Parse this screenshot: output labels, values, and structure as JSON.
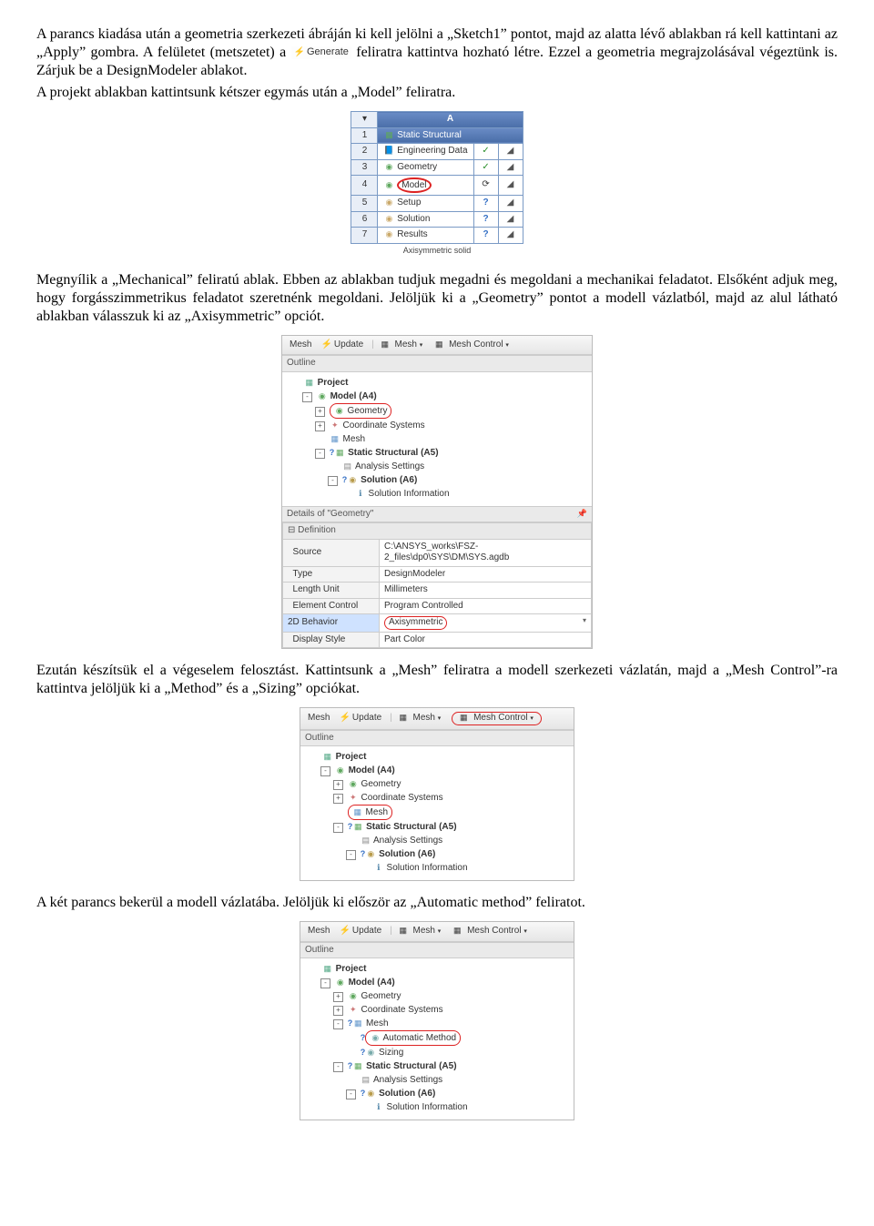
{
  "para1": "A parancs kiadása után a geometria szerkezeti ábráján ki kell jelölni a „Sketch1” pontot, majd az alatta lévő ablakban rá kell kattintani az „Apply” gombra. A felületet (metszetet) a ",
  "generate_label": "Generate",
  "para1b": " feliratra kattintva hozható létre. Ezzel a geometria megrajzolásával végeztünk is. Zárjuk be a DesignModeler ablakot.",
  "para1c": "A projekt ablakban kattintsunk kétszer egymás után a „Model” feliratra.",
  "schematic": {
    "col": "A",
    "rows": [
      {
        "n": "1",
        "icon": "cube",
        "label": "Static Structural",
        "st1": "",
        "st2": ""
      },
      {
        "n": "2",
        "icon": "book",
        "label": "Engineering Data",
        "st1": "✓",
        "st2": "◢"
      },
      {
        "n": "3",
        "icon": "geom",
        "label": "Geometry",
        "st1": "✓",
        "st2": "◢"
      },
      {
        "n": "4",
        "icon": "model",
        "label": "Model",
        "st1": "⟳",
        "st2": "◢",
        "ring": true
      },
      {
        "n": "5",
        "icon": "setup",
        "label": "Setup",
        "st1": "?",
        "st2": "◢"
      },
      {
        "n": "6",
        "icon": "sol",
        "label": "Solution",
        "st1": "?",
        "st2": "◢"
      },
      {
        "n": "7",
        "icon": "res",
        "label": "Results",
        "st1": "?",
        "st2": "◢"
      }
    ],
    "caption": "Axisymmetric solid"
  },
  "para2a": "Megnyílik a „Mechanical” feliratú ablak. Ebben az ablakban tudjuk megadni és megoldani a mechanikai feladatot. Elsőként adjuk meg, hogy forgásszimmetrikus feladatot szeretnénk megoldani. Jelöljük ki a „Geometry” pontot a modell vázlatból, majd az alul látható ablakban válasszuk ki az „Axisymmetric” opciót.",
  "mech1": {
    "toolbar": {
      "mesh": "Mesh",
      "update": "Update",
      "meshm": "Mesh",
      "meshc": "Mesh Control"
    },
    "outline_hdr": "Outline",
    "tree": [
      {
        "d": 0,
        "box": "",
        "ico": "proj",
        "txt": "Project",
        "b": true
      },
      {
        "d": 1,
        "box": "-",
        "ico": "model",
        "txt": "Model (A4)",
        "b": true
      },
      {
        "d": 2,
        "box": "+",
        "ico": "geom",
        "txt": "Geometry",
        "ring": true
      },
      {
        "d": 2,
        "box": "+",
        "ico": "coord",
        "txt": "Coordinate Systems"
      },
      {
        "d": 2,
        "box": "",
        "ico": "mesh",
        "txt": "Mesh"
      },
      {
        "d": 2,
        "box": "-",
        "ico": "stat",
        "txt": "Static Structural (A5)",
        "b": true,
        "pre": "?"
      },
      {
        "d": 3,
        "box": "",
        "ico": "anset",
        "txt": "Analysis Settings"
      },
      {
        "d": 3,
        "box": "-",
        "ico": "soln",
        "txt": "Solution (A6)",
        "b": true,
        "pre": "?"
      },
      {
        "d": 4,
        "box": "",
        "ico": "sinfo",
        "txt": "Solution Information"
      }
    ],
    "details_hdr": "Details of \"Geometry\"",
    "details": {
      "cat": "Definition",
      "rows": [
        {
          "k": "Source",
          "v": "C:\\ANSYS_works\\FSZ-2_files\\dp0\\SYS\\DM\\SYS.agdb"
        },
        {
          "k": "Type",
          "v": "DesignModeler"
        },
        {
          "k": "Length Unit",
          "v": "Millimeters"
        },
        {
          "k": "Element Control",
          "v": "Program Controlled"
        },
        {
          "k": "2D Behavior",
          "v": "Axisymmetric",
          "sel": true,
          "ring": true,
          "drop": true
        },
        {
          "k": "Display Style",
          "v": "Part Color"
        }
      ]
    }
  },
  "para3": "Ezután készítsük el a végeselem felosztást. Kattintsunk a „Mesh” feliratra a modell szerkezeti vázlatán, majd a „Mesh Control”-ra kattintva jelöljük ki a „Method” és a „Sizing” opciókat.",
  "mech2": {
    "toolbar": {
      "mesh": "Mesh",
      "update": "Update",
      "meshm": "Mesh",
      "meshc": "Mesh Control",
      "ring_meshc": true
    },
    "outline_hdr": "Outline",
    "tree": [
      {
        "d": 0,
        "box": "",
        "ico": "proj",
        "txt": "Project",
        "b": true
      },
      {
        "d": 1,
        "box": "-",
        "ico": "model",
        "txt": "Model (A4)",
        "b": true
      },
      {
        "d": 2,
        "box": "+",
        "ico": "geom",
        "txt": "Geometry"
      },
      {
        "d": 2,
        "box": "+",
        "ico": "coord",
        "txt": "Coordinate Systems"
      },
      {
        "d": 2,
        "box": "",
        "ico": "mesh",
        "txt": "Mesh",
        "ring": true
      },
      {
        "d": 2,
        "box": "-",
        "ico": "stat",
        "txt": "Static Structural (A5)",
        "b": true,
        "pre": "?"
      },
      {
        "d": 3,
        "box": "",
        "ico": "anset",
        "txt": "Analysis Settings"
      },
      {
        "d": 3,
        "box": "-",
        "ico": "soln",
        "txt": "Solution (A6)",
        "b": true,
        "pre": "?"
      },
      {
        "d": 4,
        "box": "",
        "ico": "sinfo",
        "txt": "Solution Information"
      }
    ]
  },
  "para4": "A két parancs bekerül a modell vázlatába. Jelöljük ki először az „Automatic method” feliratot.",
  "mech3": {
    "toolbar": {
      "mesh": "Mesh",
      "update": "Update",
      "meshm": "Mesh",
      "meshc": "Mesh Control"
    },
    "outline_hdr": "Outline",
    "tree": [
      {
        "d": 0,
        "box": "",
        "ico": "proj",
        "txt": "Project",
        "b": true
      },
      {
        "d": 1,
        "box": "-",
        "ico": "model",
        "txt": "Model (A4)",
        "b": true
      },
      {
        "d": 2,
        "box": "+",
        "ico": "geom",
        "txt": "Geometry"
      },
      {
        "d": 2,
        "box": "+",
        "ico": "coord",
        "txt": "Coordinate Systems"
      },
      {
        "d": 2,
        "box": "-",
        "ico": "mesh",
        "txt": "Mesh",
        "pre": "?"
      },
      {
        "d": 3,
        "box": "",
        "ico": "am",
        "txt": "Automatic Method",
        "pre": "?",
        "ring": true
      },
      {
        "d": 3,
        "box": "",
        "ico": "siz",
        "txt": "Sizing",
        "pre": "?"
      },
      {
        "d": 2,
        "box": "-",
        "ico": "stat",
        "txt": "Static Structural (A5)",
        "b": true,
        "pre": "?"
      },
      {
        "d": 3,
        "box": "",
        "ico": "anset",
        "txt": "Analysis Settings"
      },
      {
        "d": 3,
        "box": "-",
        "ico": "soln",
        "txt": "Solution (A6)",
        "b": true,
        "pre": "?"
      },
      {
        "d": 4,
        "box": "",
        "ico": "sinfo",
        "txt": "Solution Information"
      }
    ]
  }
}
